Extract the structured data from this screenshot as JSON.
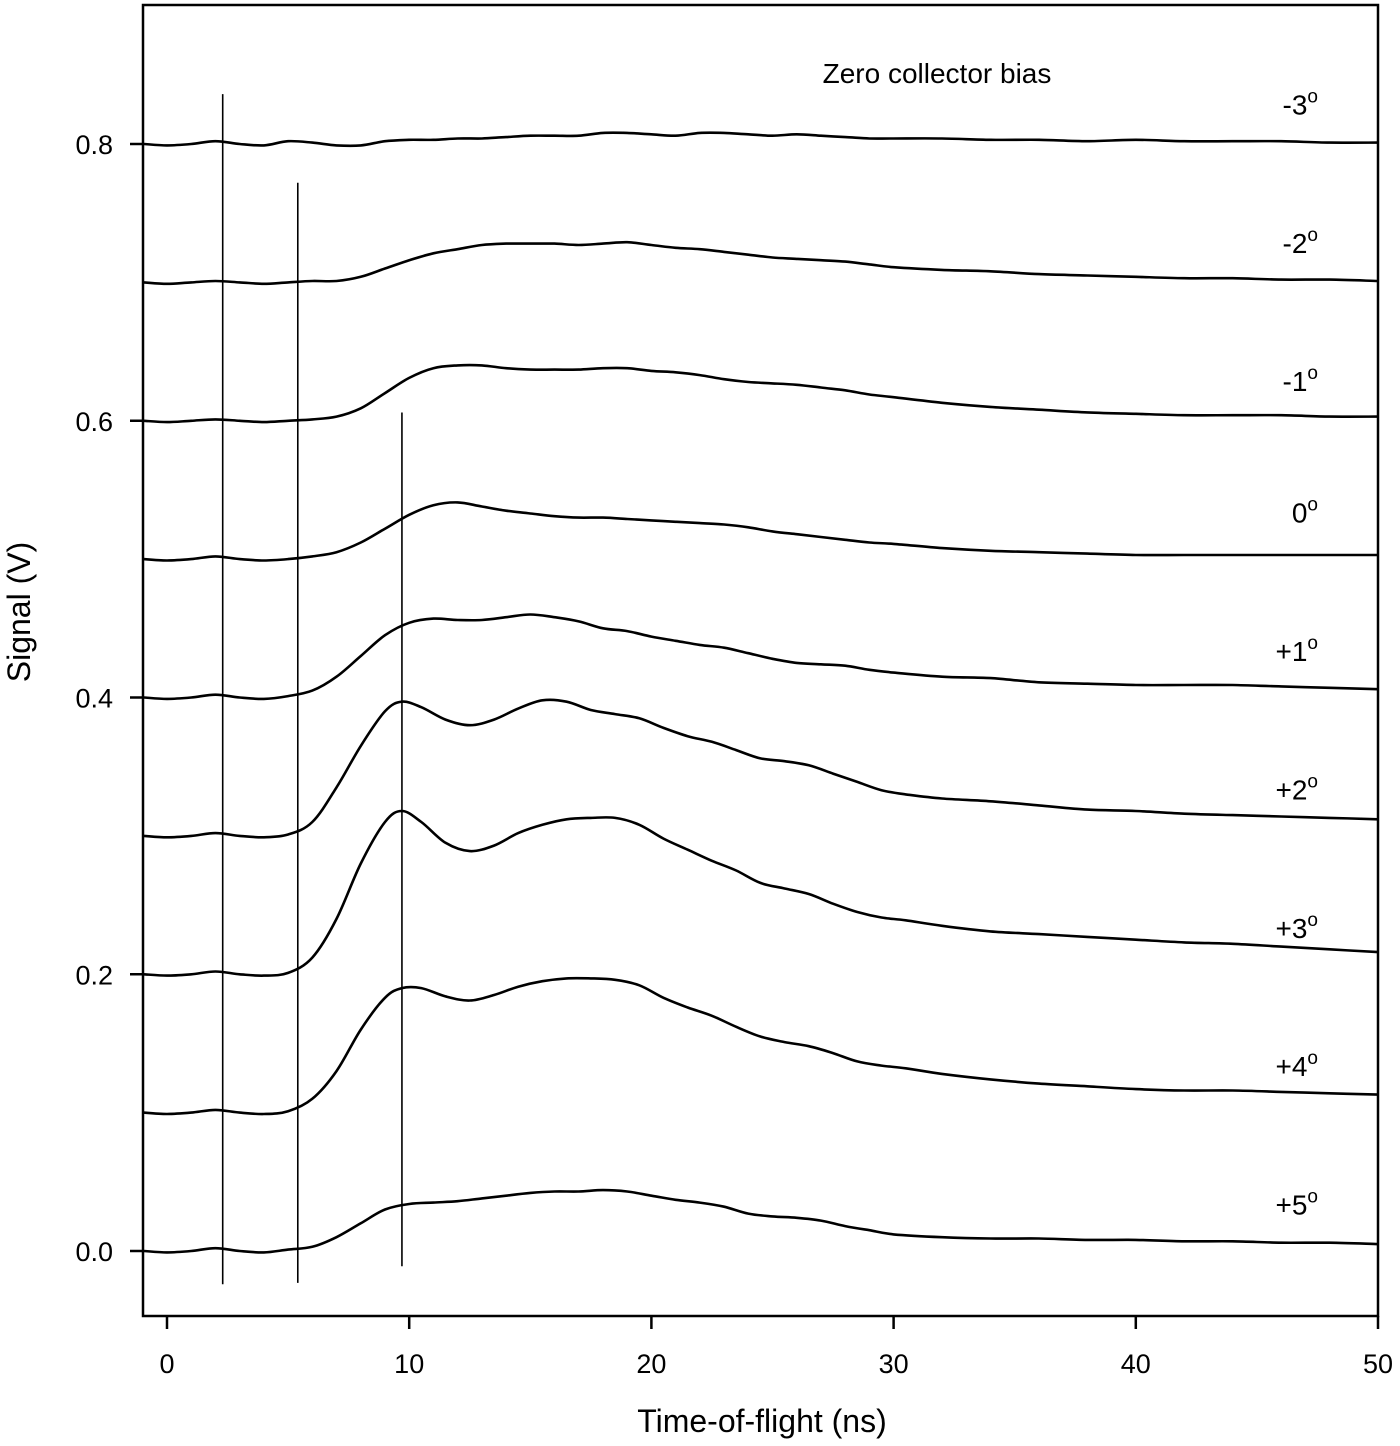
{
  "chart_data": {
    "type": "line",
    "title": "",
    "annotation": "Zero collector bias",
    "xlabel": "Time-of-flight (ns)",
    "ylabel": "Signal (V)",
    "xlim": [
      -1,
      50
    ],
    "ylim": [
      -0.047,
      0.9
    ],
    "xticks": [
      0,
      10,
      20,
      30,
      40,
      50
    ],
    "xtick_labels": [
      "0",
      "10",
      "20",
      "30",
      "40",
      "50"
    ],
    "yticks": [
      0.0,
      0.2,
      0.4,
      0.6,
      0.8
    ],
    "ytick_labels": [
      "0.0",
      "0.2",
      "0.4",
      "0.6",
      "0.8"
    ],
    "grid": false,
    "legend": "none (series labeled inline at right)",
    "vertical_markers": [
      {
        "x": 2.3,
        "y_top": 0.836,
        "y_bottom": -0.024
      },
      {
        "x": 5.4,
        "y_top": 0.772,
        "y_bottom": -0.023
      },
      {
        "x": 9.7,
        "y_top": 0.606,
        "y_bottom": -0.011
      }
    ],
    "series": [
      {
        "name": "-3°",
        "label_main": "-3",
        "label_y": 0.83,
        "offset": 0.8,
        "x": [
          -1,
          0,
          1,
          2,
          3,
          4,
          5,
          6,
          7,
          8,
          9,
          10,
          11,
          12,
          13,
          14,
          15,
          16,
          17,
          18,
          19,
          20,
          21,
          22,
          23,
          24,
          25,
          26,
          27,
          28,
          29,
          30,
          32,
          34,
          36,
          38,
          40,
          42,
          44,
          46,
          48,
          50
        ],
        "y": [
          0.8,
          0.799,
          0.8,
          0.802,
          0.8,
          0.799,
          0.802,
          0.801,
          0.799,
          0.799,
          0.802,
          0.803,
          0.803,
          0.804,
          0.804,
          0.805,
          0.806,
          0.806,
          0.806,
          0.808,
          0.808,
          0.807,
          0.806,
          0.808,
          0.808,
          0.807,
          0.806,
          0.807,
          0.806,
          0.805,
          0.804,
          0.804,
          0.804,
          0.803,
          0.803,
          0.802,
          0.803,
          0.802,
          0.802,
          0.802,
          0.801,
          0.801
        ]
      },
      {
        "name": "-2°",
        "label_main": "-2",
        "label_y": 0.73,
        "offset": 0.7,
        "x": [
          -1,
          0,
          1,
          2,
          3,
          4,
          5,
          6,
          7,
          8,
          9,
          10,
          11,
          12,
          13,
          14,
          15,
          16,
          17,
          18,
          19,
          20,
          21,
          22,
          23,
          24,
          25,
          26,
          27,
          28,
          29,
          30,
          32,
          34,
          36,
          38,
          40,
          42,
          44,
          46,
          48,
          50
        ],
        "y": [
          0.7,
          0.699,
          0.7,
          0.701,
          0.7,
          0.699,
          0.7,
          0.701,
          0.701,
          0.704,
          0.71,
          0.716,
          0.721,
          0.724,
          0.727,
          0.728,
          0.728,
          0.728,
          0.727,
          0.728,
          0.729,
          0.727,
          0.725,
          0.724,
          0.722,
          0.72,
          0.718,
          0.717,
          0.716,
          0.715,
          0.713,
          0.711,
          0.709,
          0.708,
          0.706,
          0.705,
          0.704,
          0.703,
          0.703,
          0.702,
          0.702,
          0.701
        ]
      },
      {
        "name": "-1°",
        "label_main": "-1",
        "label_y": 0.63,
        "offset": 0.6,
        "x": [
          -1,
          0,
          1,
          2,
          3,
          4,
          5,
          6,
          7,
          8,
          9,
          10,
          11,
          12,
          13,
          14,
          15,
          16,
          17,
          18,
          19,
          20,
          21,
          22,
          23,
          24,
          25,
          26,
          27,
          28,
          29,
          30,
          32,
          34,
          36,
          38,
          40,
          42,
          44,
          46,
          48,
          50
        ],
        "y": [
          0.6,
          0.599,
          0.6,
          0.601,
          0.6,
          0.599,
          0.6,
          0.601,
          0.603,
          0.609,
          0.62,
          0.631,
          0.638,
          0.64,
          0.64,
          0.638,
          0.637,
          0.637,
          0.637,
          0.638,
          0.638,
          0.636,
          0.635,
          0.633,
          0.63,
          0.628,
          0.627,
          0.626,
          0.624,
          0.622,
          0.619,
          0.617,
          0.613,
          0.61,
          0.608,
          0.606,
          0.605,
          0.604,
          0.604,
          0.604,
          0.603,
          0.603
        ]
      },
      {
        "name": "0°",
        "label_main": "0",
        "label_y": 0.535,
        "offset": 0.5,
        "x": [
          -1,
          0,
          1,
          2,
          3,
          4,
          5,
          6,
          7,
          8,
          9,
          10,
          11,
          12,
          13,
          14,
          15,
          16,
          17,
          18,
          19,
          20,
          21,
          22,
          23,
          24,
          25,
          26,
          27,
          28,
          29,
          30,
          32,
          34,
          36,
          38,
          40,
          42,
          44,
          46,
          48,
          50
        ],
        "y": [
          0.5,
          0.499,
          0.5,
          0.502,
          0.5,
          0.499,
          0.5,
          0.502,
          0.505,
          0.512,
          0.522,
          0.532,
          0.539,
          0.541,
          0.538,
          0.535,
          0.533,
          0.531,
          0.53,
          0.53,
          0.529,
          0.528,
          0.527,
          0.526,
          0.525,
          0.523,
          0.52,
          0.518,
          0.516,
          0.514,
          0.512,
          0.511,
          0.508,
          0.506,
          0.505,
          0.504,
          0.503,
          0.503,
          0.503,
          0.503,
          0.503,
          0.503
        ]
      },
      {
        "name": "+1°",
        "label_main": "+1",
        "label_y": 0.435,
        "offset": 0.4,
        "x": [
          -1,
          0,
          1,
          2,
          3,
          4,
          5,
          6,
          7,
          8,
          9,
          10,
          11,
          12,
          13,
          14,
          15,
          16,
          17,
          18,
          19,
          20,
          21,
          22,
          23,
          24,
          25,
          26,
          27,
          28,
          29,
          30,
          32,
          34,
          36,
          38,
          40,
          42,
          44,
          46,
          48,
          50
        ],
        "y": [
          0.4,
          0.399,
          0.4,
          0.402,
          0.4,
          0.399,
          0.401,
          0.405,
          0.415,
          0.43,
          0.445,
          0.454,
          0.457,
          0.456,
          0.456,
          0.458,
          0.46,
          0.458,
          0.455,
          0.45,
          0.448,
          0.444,
          0.441,
          0.438,
          0.436,
          0.432,
          0.428,
          0.425,
          0.424,
          0.423,
          0.42,
          0.418,
          0.415,
          0.414,
          0.411,
          0.41,
          0.409,
          0.409,
          0.409,
          0.408,
          0.407,
          0.406
        ]
      },
      {
        "name": "+2°",
        "label_main": "+2",
        "label_y": 0.335,
        "offset": 0.3,
        "x": [
          -1,
          0,
          1,
          2,
          3,
          4,
          5,
          6,
          7,
          8,
          9,
          9.7,
          10.5,
          11.5,
          12.5,
          13.5,
          14.5,
          15.5,
          16.5,
          17.5,
          18.5,
          19.5,
          20.5,
          21.5,
          22.5,
          23.5,
          24.5,
          25.5,
          26.5,
          27.5,
          28.5,
          29.5,
          30.5,
          32,
          34,
          36,
          38,
          40,
          42,
          44,
          46,
          48,
          50
        ],
        "y": [
          0.3,
          0.299,
          0.3,
          0.302,
          0.3,
          0.299,
          0.301,
          0.31,
          0.335,
          0.365,
          0.39,
          0.397,
          0.393,
          0.384,
          0.38,
          0.384,
          0.392,
          0.398,
          0.397,
          0.391,
          0.388,
          0.385,
          0.378,
          0.372,
          0.368,
          0.362,
          0.356,
          0.354,
          0.351,
          0.345,
          0.339,
          0.333,
          0.33,
          0.327,
          0.325,
          0.322,
          0.319,
          0.318,
          0.316,
          0.315,
          0.314,
          0.313,
          0.312
        ]
      },
      {
        "name": "+3°",
        "label_main": "+3",
        "label_y": 0.235,
        "offset": 0.2,
        "x": [
          -1,
          0,
          1,
          2,
          3,
          4,
          5,
          6,
          7,
          8,
          9,
          9.7,
          10.5,
          11.5,
          12.5,
          13.5,
          14.5,
          15.5,
          16.5,
          17.5,
          18.5,
          19.5,
          20.5,
          21.5,
          22.5,
          23.5,
          24.5,
          25.5,
          26.5,
          27.5,
          28.5,
          29.5,
          30.5,
          32,
          34,
          36,
          38,
          40,
          42,
          44,
          46,
          48,
          50
        ],
        "y": [
          0.2,
          0.199,
          0.2,
          0.202,
          0.2,
          0.199,
          0.201,
          0.212,
          0.24,
          0.28,
          0.31,
          0.318,
          0.31,
          0.295,
          0.289,
          0.293,
          0.302,
          0.308,
          0.312,
          0.313,
          0.313,
          0.308,
          0.298,
          0.29,
          0.282,
          0.275,
          0.266,
          0.262,
          0.258,
          0.251,
          0.245,
          0.241,
          0.239,
          0.235,
          0.231,
          0.229,
          0.227,
          0.225,
          0.223,
          0.222,
          0.22,
          0.218,
          0.216
        ]
      },
      {
        "name": "+4°",
        "label_main": "+4",
        "label_y": 0.135,
        "offset": 0.1,
        "x": [
          -1,
          0,
          1,
          2,
          3,
          4,
          5,
          6,
          7,
          8,
          9,
          9.7,
          10.5,
          11.5,
          12.5,
          13.5,
          14.5,
          15.5,
          16.5,
          17.5,
          18.5,
          19.5,
          20.5,
          21.5,
          22.5,
          23.5,
          24.5,
          25.5,
          26.5,
          27.5,
          28.5,
          29.5,
          30.5,
          32,
          34,
          36,
          38,
          40,
          42,
          44,
          46,
          48,
          50
        ],
        "y": [
          0.1,
          0.099,
          0.1,
          0.102,
          0.1,
          0.099,
          0.101,
          0.11,
          0.13,
          0.16,
          0.183,
          0.19,
          0.19,
          0.184,
          0.181,
          0.185,
          0.191,
          0.195,
          0.197,
          0.197,
          0.196,
          0.192,
          0.183,
          0.176,
          0.17,
          0.162,
          0.155,
          0.151,
          0.148,
          0.143,
          0.137,
          0.134,
          0.132,
          0.128,
          0.124,
          0.121,
          0.119,
          0.117,
          0.116,
          0.116,
          0.115,
          0.114,
          0.113
        ]
      },
      {
        "name": "+5°",
        "label_main": "+5",
        "label_y": 0.035,
        "offset": 0.0,
        "x": [
          -1,
          0,
          1,
          2,
          3,
          4,
          5,
          6,
          7,
          8,
          9,
          10,
          11,
          12,
          13,
          14,
          15,
          16,
          17,
          18,
          19,
          20,
          21,
          22,
          23,
          24,
          25,
          26,
          27,
          28,
          29,
          30,
          32,
          34,
          36,
          38,
          40,
          42,
          44,
          46,
          48,
          50
        ],
        "y": [
          0.0,
          -0.001,
          0.0,
          0.002,
          0.0,
          -0.001,
          0.001,
          0.003,
          0.01,
          0.02,
          0.03,
          0.034,
          0.035,
          0.036,
          0.038,
          0.04,
          0.042,
          0.043,
          0.043,
          0.044,
          0.043,
          0.04,
          0.037,
          0.035,
          0.032,
          0.027,
          0.025,
          0.024,
          0.022,
          0.018,
          0.015,
          0.012,
          0.01,
          0.009,
          0.009,
          0.008,
          0.008,
          0.007,
          0.007,
          0.006,
          0.006,
          0.005
        ]
      }
    ]
  }
}
